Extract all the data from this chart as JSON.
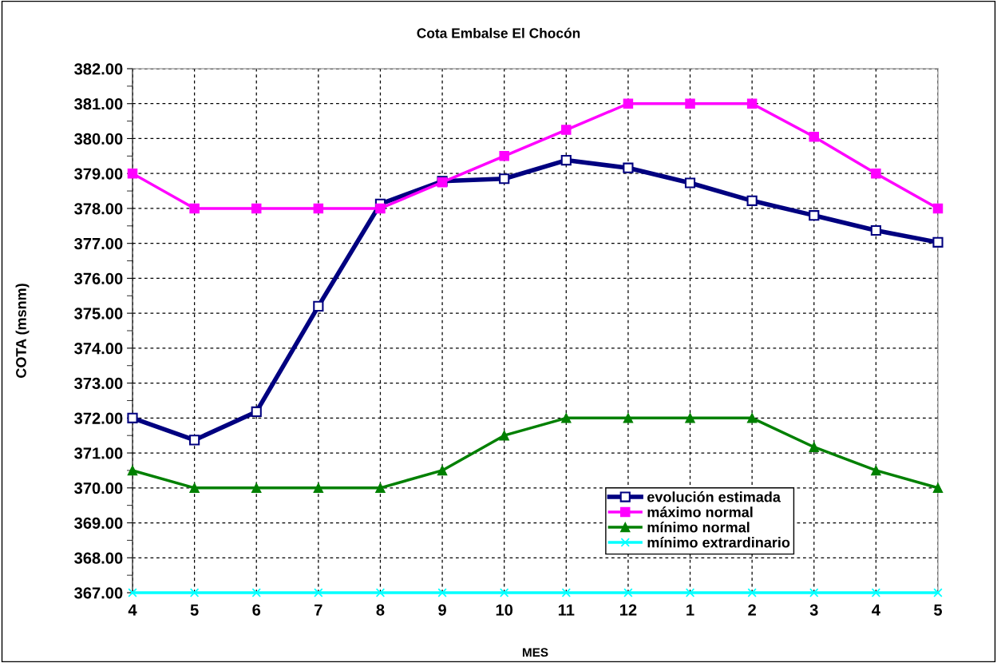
{
  "chart_data": {
    "type": "line",
    "title": "Cota Embalse El Chocón",
    "xlabel": "MES",
    "ylabel": "COTA (msnm)",
    "categories": [
      "4",
      "5",
      "6",
      "7",
      "8",
      "9",
      "10",
      "11",
      "12",
      "1",
      "2",
      "3",
      "4",
      "5"
    ],
    "series": [
      {
        "name": "evolución estimada",
        "color": "#000080",
        "marker": "square",
        "values": [
          372.0,
          371.37,
          372.18,
          375.2,
          378.13,
          378.78,
          378.85,
          379.38,
          379.16,
          378.73,
          378.22,
          377.8,
          377.37,
          377.03
        ]
      },
      {
        "name": "máximo normal",
        "color": "#ff00ff",
        "marker": "square",
        "values": [
          379.0,
          378.0,
          378.0,
          378.0,
          378.0,
          378.75,
          379.5,
          380.25,
          381.0,
          381.0,
          381.0,
          380.05,
          379.0,
          378.0
        ]
      },
      {
        "name": "mínimo normal",
        "color": "#008000",
        "marker": "triangle",
        "values": [
          370.5,
          370.0,
          370.0,
          370.0,
          370.0,
          370.5,
          371.5,
          372.0,
          372.0,
          372.0,
          372.0,
          371.17,
          370.5,
          370.0
        ]
      },
      {
        "name": "mínimo extrardinario",
        "color": "#00ffff",
        "marker": "cross",
        "values": [
          367.0,
          367.0,
          367.0,
          367.0,
          367.0,
          367.0,
          367.0,
          367.0,
          367.0,
          367.0,
          367.0,
          367.0,
          367.0,
          367.0
        ]
      }
    ],
    "ylim": [
      367,
      382
    ],
    "yticks": [
      {
        "value": 367,
        "label": "367.00"
      },
      {
        "value": 368,
        "label": "368.00"
      },
      {
        "value": 369,
        "label": "369.00"
      },
      {
        "value": 370,
        "label": "370.00"
      },
      {
        "value": 371,
        "label": "371.00"
      },
      {
        "value": 372,
        "label": "372.00"
      },
      {
        "value": 373,
        "label": "373.00"
      },
      {
        "value": 374,
        "label": "374.00"
      },
      {
        "value": 375,
        "label": "375.00"
      },
      {
        "value": 376,
        "label": "376.00"
      },
      {
        "value": 377,
        "label": "377.00"
      },
      {
        "value": 378,
        "label": "378.00"
      },
      {
        "value": 379,
        "label": "379.00"
      },
      {
        "value": 380,
        "label": "380.00"
      },
      {
        "value": 381,
        "label": "381.00"
      },
      {
        "value": 382,
        "label": "382.00"
      }
    ],
    "grid": true,
    "legend": "bottom right",
    "line_style": "solid"
  }
}
